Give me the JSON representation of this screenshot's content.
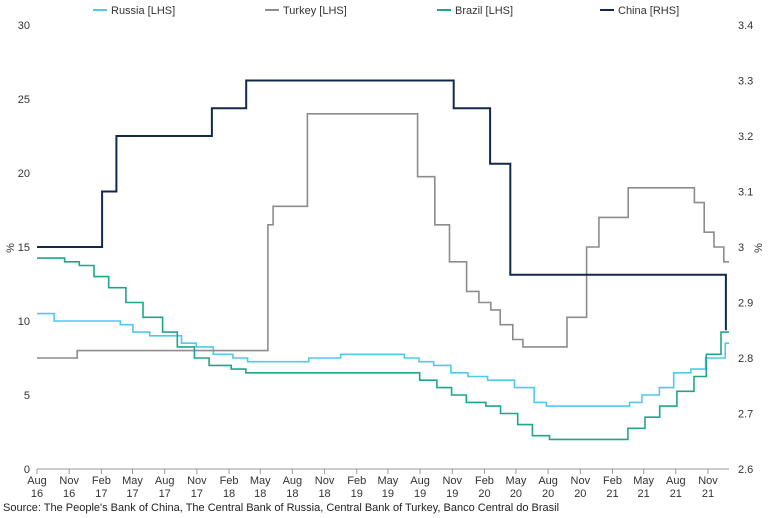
{
  "source": "Source: The People's Bank of China, The Central Bank of Russia, Central Bank of Turkey, Banco Central do Brasil",
  "chart_data": {
    "type": "line",
    "x_axis_type": "date",
    "x_range": [
      "2016-08-01",
      "2021-12-31"
    ],
    "x_ticks": [
      {
        "date": "2016-08-01",
        "label": [
          "Aug",
          "16"
        ]
      },
      {
        "date": "2016-11-01",
        "label": [
          "Nov",
          "16"
        ]
      },
      {
        "date": "2017-02-01",
        "label": [
          "Feb",
          "17"
        ]
      },
      {
        "date": "2017-05-01",
        "label": [
          "May",
          "17"
        ]
      },
      {
        "date": "2017-08-01",
        "label": [
          "Aug",
          "17"
        ]
      },
      {
        "date": "2017-11-01",
        "label": [
          "Nov",
          "17"
        ]
      },
      {
        "date": "2018-02-01",
        "label": [
          "Feb",
          "18"
        ]
      },
      {
        "date": "2018-05-01",
        "label": [
          "May",
          "18"
        ]
      },
      {
        "date": "2018-08-01",
        "label": [
          "Aug",
          "18"
        ]
      },
      {
        "date": "2018-11-01",
        "label": [
          "Nov",
          "18"
        ]
      },
      {
        "date": "2019-02-01",
        "label": [
          "Feb",
          "19"
        ]
      },
      {
        "date": "2019-05-01",
        "label": [
          "May",
          "19"
        ]
      },
      {
        "date": "2019-08-01",
        "label": [
          "Aug",
          "19"
        ]
      },
      {
        "date": "2019-11-01",
        "label": [
          "Nov",
          "19"
        ]
      },
      {
        "date": "2020-02-01",
        "label": [
          "Feb",
          "20"
        ]
      },
      {
        "date": "2020-05-01",
        "label": [
          "May",
          "20"
        ]
      },
      {
        "date": "2020-08-01",
        "label": [
          "Aug",
          "20"
        ]
      },
      {
        "date": "2020-11-01",
        "label": [
          "Nov",
          "20"
        ]
      },
      {
        "date": "2021-02-01",
        "label": [
          "Feb",
          "21"
        ]
      },
      {
        "date": "2021-05-01",
        "label": [
          "May",
          "21"
        ]
      },
      {
        "date": "2021-08-01",
        "label": [
          "Aug",
          "21"
        ]
      },
      {
        "date": "2021-11-01",
        "label": [
          "Nov",
          "21"
        ]
      }
    ],
    "y_left": {
      "label": "%",
      "ylim": [
        0,
        30
      ],
      "ticks": [
        0,
        5,
        10,
        15,
        20,
        25,
        30
      ]
    },
    "y_right": {
      "label": "%",
      "ylim": [
        2.6,
        3.4
      ],
      "ticks": [
        2.6,
        2.7,
        2.8,
        2.9,
        3.0,
        3.1,
        3.2,
        3.3,
        3.4
      ],
      "tick_labels": [
        "2.6",
        "2.7",
        "2.8",
        "2.9",
        "3",
        "3.1",
        "3.2",
        "3.3",
        "3.4"
      ]
    },
    "grid": false,
    "legend_position": "top",
    "series": [
      {
        "name": "Russia [LHS]",
        "axis": "left",
        "color": "#4fc9ee",
        "step": true,
        "points": [
          [
            "2016-08-01",
            10.5
          ],
          [
            "2016-09-19",
            10.0
          ],
          [
            "2017-03-27",
            9.75
          ],
          [
            "2017-05-02",
            9.25
          ],
          [
            "2017-06-19",
            9.0
          ],
          [
            "2017-09-18",
            8.5
          ],
          [
            "2017-10-30",
            8.25
          ],
          [
            "2017-12-18",
            7.75
          ],
          [
            "2018-02-12",
            7.5
          ],
          [
            "2018-03-26",
            7.25
          ],
          [
            "2018-09-17",
            7.5
          ],
          [
            "2018-12-17",
            7.75
          ],
          [
            "2019-06-17",
            7.5
          ],
          [
            "2019-07-29",
            7.25
          ],
          [
            "2019-09-09",
            7.0
          ],
          [
            "2019-10-28",
            6.5
          ],
          [
            "2019-12-16",
            6.25
          ],
          [
            "2020-02-10",
            6.0
          ],
          [
            "2020-04-27",
            5.5
          ],
          [
            "2020-06-22",
            4.5
          ],
          [
            "2020-07-27",
            4.25
          ],
          [
            "2021-03-22",
            4.5
          ],
          [
            "2021-04-26",
            5.0
          ],
          [
            "2021-06-15",
            5.5
          ],
          [
            "2021-07-26",
            6.5
          ],
          [
            "2021-09-13",
            6.75
          ],
          [
            "2021-10-25",
            7.5
          ],
          [
            "2021-12-20",
            8.5
          ],
          [
            "2021-12-31",
            8.5
          ]
        ]
      },
      {
        "name": "Turkey [LHS]",
        "axis": "left",
        "color": "#8c8c8c",
        "step": true,
        "points": [
          [
            "2016-08-01",
            7.5
          ],
          [
            "2016-11-24",
            8.0
          ],
          [
            "2018-05-23",
            16.5
          ],
          [
            "2018-06-01",
            16.5
          ],
          [
            "2018-06-07",
            17.75
          ],
          [
            "2018-09-13",
            24.0
          ],
          [
            "2019-07-25",
            19.75
          ],
          [
            "2019-09-12",
            16.5
          ],
          [
            "2019-10-24",
            14.0
          ],
          [
            "2019-12-12",
            12.0
          ],
          [
            "2020-01-16",
            11.25
          ],
          [
            "2020-02-19",
            10.75
          ],
          [
            "2020-03-17",
            9.75
          ],
          [
            "2020-04-22",
            8.75
          ],
          [
            "2020-05-21",
            8.25
          ],
          [
            "2020-09-24",
            10.25
          ],
          [
            "2020-11-19",
            15.0
          ],
          [
            "2020-12-24",
            17.0
          ],
          [
            "2021-03-18",
            19.0
          ],
          [
            "2021-09-23",
            18.0
          ],
          [
            "2021-10-21",
            16.0
          ],
          [
            "2021-11-18",
            15.0
          ],
          [
            "2021-12-16",
            14.0
          ],
          [
            "2021-12-31",
            14.0
          ]
        ]
      },
      {
        "name": "Brazil [LHS]",
        "axis": "left",
        "color": "#1fa58a",
        "step": true,
        "points": [
          [
            "2016-08-01",
            14.25
          ],
          [
            "2016-10-19",
            14.0
          ],
          [
            "2016-11-30",
            13.75
          ],
          [
            "2017-01-11",
            13.0
          ],
          [
            "2017-02-22",
            12.25
          ],
          [
            "2017-04-12",
            11.25
          ],
          [
            "2017-05-31",
            10.25
          ],
          [
            "2017-07-26",
            9.25
          ],
          [
            "2017-09-06",
            8.25
          ],
          [
            "2017-10-25",
            7.5
          ],
          [
            "2017-12-06",
            7.0
          ],
          [
            "2018-02-07",
            6.75
          ],
          [
            "2018-03-21",
            6.5
          ],
          [
            "2019-07-31",
            6.0
          ],
          [
            "2019-09-18",
            5.5
          ],
          [
            "2019-10-30",
            5.0
          ],
          [
            "2019-12-11",
            4.5
          ],
          [
            "2020-02-05",
            4.25
          ],
          [
            "2020-03-18",
            3.75
          ],
          [
            "2020-05-06",
            3.0
          ],
          [
            "2020-06-17",
            2.25
          ],
          [
            "2020-08-05",
            2.0
          ],
          [
            "2021-03-17",
            2.75
          ],
          [
            "2021-05-05",
            3.5
          ],
          [
            "2021-06-16",
            4.25
          ],
          [
            "2021-08-04",
            5.25
          ],
          [
            "2021-09-22",
            6.25
          ],
          [
            "2021-10-27",
            7.75
          ],
          [
            "2021-12-08",
            9.25
          ],
          [
            "2021-12-31",
            9.25
          ]
        ]
      },
      {
        "name": "China [RHS]",
        "axis": "right",
        "color": "#12284c",
        "step": true,
        "points": [
          [
            "2016-08-01",
            3.0
          ],
          [
            "2017-02-03",
            3.1
          ],
          [
            "2017-03-16",
            3.2
          ],
          [
            "2017-12-14",
            3.25
          ],
          [
            "2018-03-22",
            3.3
          ],
          [
            "2019-11-05",
            3.25
          ],
          [
            "2020-02-17",
            3.15
          ],
          [
            "2020-04-15",
            2.95
          ],
          [
            "2021-12-20",
            2.95
          ],
          [
            "2021-12-22",
            2.85
          ]
        ]
      }
    ]
  }
}
